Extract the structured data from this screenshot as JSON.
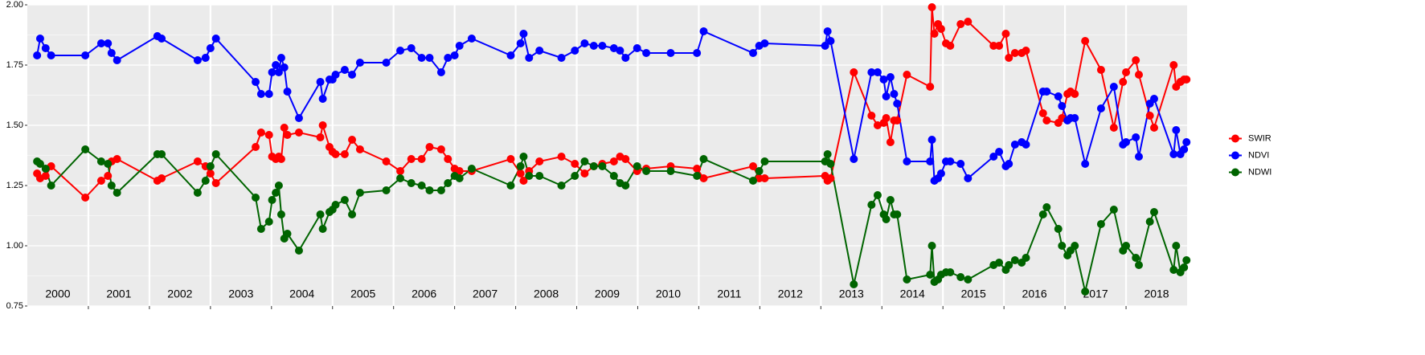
{
  "chart_data": {
    "type": "line",
    "x": [
      2000.16,
      2000.21,
      2000.3,
      2000.39,
      2000.95,
      2001.21,
      2001.32,
      2001.38,
      2001.47,
      2002.13,
      2002.2,
      2002.79,
      2002.92,
      2003.0,
      2003.09,
      2003.74,
      2003.83,
      2003.96,
      2004.01,
      2004.07,
      2004.12,
      2004.16,
      2004.21,
      2004.26,
      2004.45,
      2004.8,
      2004.84,
      2004.95,
      2005.0,
      2005.05,
      2005.2,
      2005.32,
      2005.45,
      2005.88,
      2006.11,
      2006.29,
      2006.46,
      2006.59,
      2006.78,
      2006.89,
      2007.0,
      2007.08,
      2007.28,
      2007.92,
      2008.08,
      2008.13,
      2008.22,
      2008.39,
      2008.75,
      2008.97,
      2009.13,
      2009.28,
      2009.42,
      2009.61,
      2009.71,
      2009.8,
      2009.99,
      2010.14,
      2010.54,
      2010.97,
      2011.08,
      2011.89,
      2011.99,
      2012.08,
      2013.07,
      2013.11,
      2013.16,
      2013.54,
      2013.83,
      2013.93,
      2014.03,
      2014.07,
      2014.14,
      2014.2,
      2014.25,
      2014.41,
      2014.79,
      2014.82,
      2014.86,
      2014.92,
      2014.97,
      2015.05,
      2015.12,
      2015.29,
      2015.41,
      2015.83,
      2015.92,
      2016.03,
      2016.08,
      2016.18,
      2016.29,
      2016.36,
      2016.64,
      2016.7,
      2016.89,
      2016.95,
      2017.04,
      2017.09,
      2017.16,
      2017.33,
      2017.59,
      2017.8,
      2017.95,
      2018.0,
      2018.16,
      2018.21,
      2018.39,
      2018.46,
      2018.78,
      2018.82,
      2018.89,
      2018.95,
      2018.99
    ],
    "series": [
      {
        "name": "SWIR",
        "color": "#ff0000",
        "values": [
          1.3,
          1.28,
          1.29,
          1.33,
          1.2,
          1.27,
          1.29,
          1.35,
          1.36,
          1.27,
          1.28,
          1.35,
          1.33,
          1.3,
          1.26,
          1.41,
          1.47,
          1.46,
          1.37,
          1.36,
          1.37,
          1.36,
          1.49,
          1.46,
          1.47,
          1.45,
          1.5,
          1.41,
          1.39,
          1.38,
          1.38,
          1.44,
          1.4,
          1.35,
          1.31,
          1.36,
          1.36,
          1.41,
          1.4,
          1.36,
          1.32,
          1.31,
          1.31,
          1.36,
          1.3,
          1.27,
          1.31,
          1.35,
          1.37,
          1.34,
          1.3,
          1.33,
          1.34,
          1.35,
          1.37,
          1.36,
          1.31,
          1.32,
          1.33,
          1.32,
          1.28,
          1.33,
          1.28,
          1.28,
          1.29,
          1.27,
          1.28,
          1.72,
          1.54,
          1.5,
          1.51,
          1.53,
          1.43,
          1.52,
          1.52,
          1.71,
          1.66,
          1.99,
          1.88,
          1.92,
          1.9,
          1.84,
          1.83,
          1.92,
          1.93,
          1.83,
          1.83,
          1.88,
          1.78,
          1.8,
          1.8,
          1.81,
          1.55,
          1.52,
          1.51,
          1.53,
          1.63,
          1.64,
          1.63,
          1.85,
          1.73,
          1.49,
          1.68,
          1.72,
          1.77,
          1.71,
          1.54,
          1.49,
          1.75,
          1.66,
          1.68,
          1.69,
          1.69
        ]
      },
      {
        "name": "NDVI",
        "color": "#0000ff",
        "values": [
          1.79,
          1.86,
          1.82,
          1.79,
          1.79,
          1.84,
          1.84,
          1.8,
          1.77,
          1.87,
          1.86,
          1.77,
          1.78,
          1.82,
          1.86,
          1.68,
          1.63,
          1.63,
          1.72,
          1.75,
          1.72,
          1.78,
          1.74,
          1.64,
          1.53,
          1.68,
          1.61,
          1.69,
          1.69,
          1.71,
          1.73,
          1.71,
          1.76,
          1.76,
          1.81,
          1.82,
          1.78,
          1.78,
          1.72,
          1.78,
          1.79,
          1.83,
          1.86,
          1.79,
          1.84,
          1.88,
          1.78,
          1.81,
          1.78,
          1.81,
          1.84,
          1.83,
          1.83,
          1.82,
          1.81,
          1.78,
          1.82,
          1.8,
          1.8,
          1.8,
          1.89,
          1.8,
          1.83,
          1.84,
          1.83,
          1.89,
          1.85,
          1.36,
          1.72,
          1.72,
          1.69,
          1.62,
          1.7,
          1.63,
          1.59,
          1.35,
          1.35,
          1.44,
          1.27,
          1.28,
          1.3,
          1.35,
          1.35,
          1.34,
          1.28,
          1.37,
          1.39,
          1.33,
          1.34,
          1.42,
          1.43,
          1.42,
          1.64,
          1.64,
          1.62,
          1.58,
          1.52,
          1.53,
          1.53,
          1.34,
          1.57,
          1.66,
          1.42,
          1.43,
          1.45,
          1.37,
          1.59,
          1.61,
          1.38,
          1.48,
          1.38,
          1.4,
          1.43
        ]
      },
      {
        "name": "NDWI",
        "color": "#006400",
        "values": [
          1.35,
          1.34,
          1.32,
          1.25,
          1.4,
          1.35,
          1.34,
          1.25,
          1.22,
          1.38,
          1.38,
          1.22,
          1.27,
          1.33,
          1.38,
          1.2,
          1.07,
          1.1,
          1.19,
          1.22,
          1.25,
          1.13,
          1.03,
          1.05,
          0.98,
          1.13,
          1.07,
          1.14,
          1.15,
          1.17,
          1.19,
          1.13,
          1.22,
          1.23,
          1.28,
          1.26,
          1.25,
          1.23,
          1.23,
          1.26,
          1.29,
          1.28,
          1.32,
          1.25,
          1.33,
          1.37,
          1.29,
          1.29,
          1.25,
          1.29,
          1.35,
          1.33,
          1.33,
          1.29,
          1.26,
          1.25,
          1.33,
          1.31,
          1.31,
          1.29,
          1.36,
          1.27,
          1.31,
          1.35,
          1.35,
          1.38,
          1.34,
          0.84,
          1.17,
          1.21,
          1.13,
          1.11,
          1.19,
          1.13,
          1.13,
          0.86,
          0.88,
          1.0,
          0.85,
          0.86,
          0.88,
          0.89,
          0.89,
          0.87,
          0.86,
          0.92,
          0.93,
          0.9,
          0.92,
          0.94,
          0.93,
          0.95,
          1.13,
          1.16,
          1.07,
          1.0,
          0.96,
          0.98,
          1.0,
          0.81,
          1.09,
          1.15,
          0.98,
          1.0,
          0.95,
          0.92,
          1.1,
          1.14,
          0.9,
          1.0,
          0.89,
          0.91,
          0.94
        ]
      }
    ],
    "xlim": [
      2000,
      2019
    ],
    "xticks": [
      {
        "value": 2000.5,
        "label": "2000"
      },
      {
        "value": 2001.5,
        "label": "2001"
      },
      {
        "value": 2002.5,
        "label": "2002"
      },
      {
        "value": 2003.5,
        "label": "2003"
      },
      {
        "value": 2004.5,
        "label": "2004"
      },
      {
        "value": 2005.5,
        "label": "2005"
      },
      {
        "value": 2006.5,
        "label": "2006"
      },
      {
        "value": 2007.5,
        "label": "2007"
      },
      {
        "value": 2008.5,
        "label": "2008"
      },
      {
        "value": 2009.5,
        "label": "2009"
      },
      {
        "value": 2010.5,
        "label": "2010"
      },
      {
        "value": 2011.5,
        "label": "2011"
      },
      {
        "value": 2012.5,
        "label": "2012"
      },
      {
        "value": 2013.5,
        "label": "2013"
      },
      {
        "value": 2014.5,
        "label": "2014"
      },
      {
        "value": 2015.5,
        "label": "2015"
      },
      {
        "value": 2016.5,
        "label": "2016"
      },
      {
        "value": 2017.5,
        "label": "2017"
      },
      {
        "value": 2018.5,
        "label": "2018"
      }
    ],
    "xbreaks": [
      2001,
      2002,
      2003,
      2004,
      2005,
      2006,
      2007,
      2008,
      2009,
      2010,
      2011,
      2012,
      2013,
      2014,
      2015,
      2016,
      2017,
      2018
    ],
    "ylim": [
      0.75,
      2.0
    ],
    "yticks": [
      {
        "value": 0.75,
        "label": "0.75"
      },
      {
        "value": 1.0,
        "label": "1.00"
      },
      {
        "value": 1.25,
        "label": "1.25"
      },
      {
        "value": 1.5,
        "label": "1.50"
      },
      {
        "value": 1.75,
        "label": "1.75"
      },
      {
        "value": 2.0,
        "label": "2.00"
      }
    ],
    "grid": true,
    "legend": "right"
  }
}
